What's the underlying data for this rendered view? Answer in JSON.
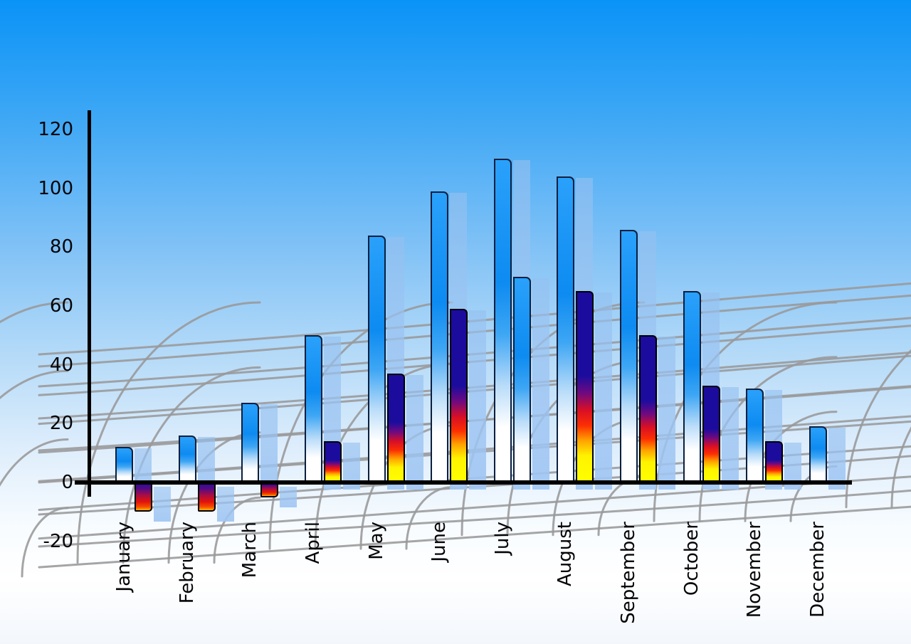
{
  "chart_data": {
    "type": "bar",
    "title": "",
    "categories": [
      "January",
      "February",
      "March",
      "April",
      "May",
      "June",
      "July",
      "August",
      "September",
      "October",
      "November",
      "December"
    ],
    "series": [
      {
        "name": "primary-blue-bars",
        "style": "blue-gradient",
        "values": [
          12,
          16,
          27,
          50,
          84,
          99,
          110,
          104,
          86,
          65,
          32,
          19
        ]
      },
      {
        "name": "secondary-accent-bars",
        "style": "fire-gradient",
        "values": [
          -10,
          -10,
          -5,
          14,
          37,
          59,
          70,
          65,
          50,
          33,
          14,
          null
        ],
        "bar_styles": [
          "fire",
          "fire",
          "fire",
          "fire",
          "fire",
          "fire",
          "blue",
          "fire",
          "fire",
          "fire",
          "fire",
          null
        ]
      }
    ],
    "y_ticks": [
      120,
      100,
      80,
      60,
      40,
      20,
      0,
      -20
    ],
    "ylim": [
      -20,
      120
    ],
    "x_label_rotation": -90,
    "legend_position": "none",
    "grid_style": "curved-perspective-mesh",
    "colors": {
      "sky_top": "#0a93f7",
      "sky_bottom": "#ffffff",
      "bar_blue_top": "#1f9bfa",
      "bar_blue_fade": "#ffffff",
      "bar_shadow": "#a9c9f1",
      "fire_navy": "#1c0c9e",
      "fire_red": "#e81007",
      "fire_yellow": "#ffff00",
      "axis": "#000000",
      "mesh": "#98989a",
      "label_text": "#050508"
    }
  }
}
